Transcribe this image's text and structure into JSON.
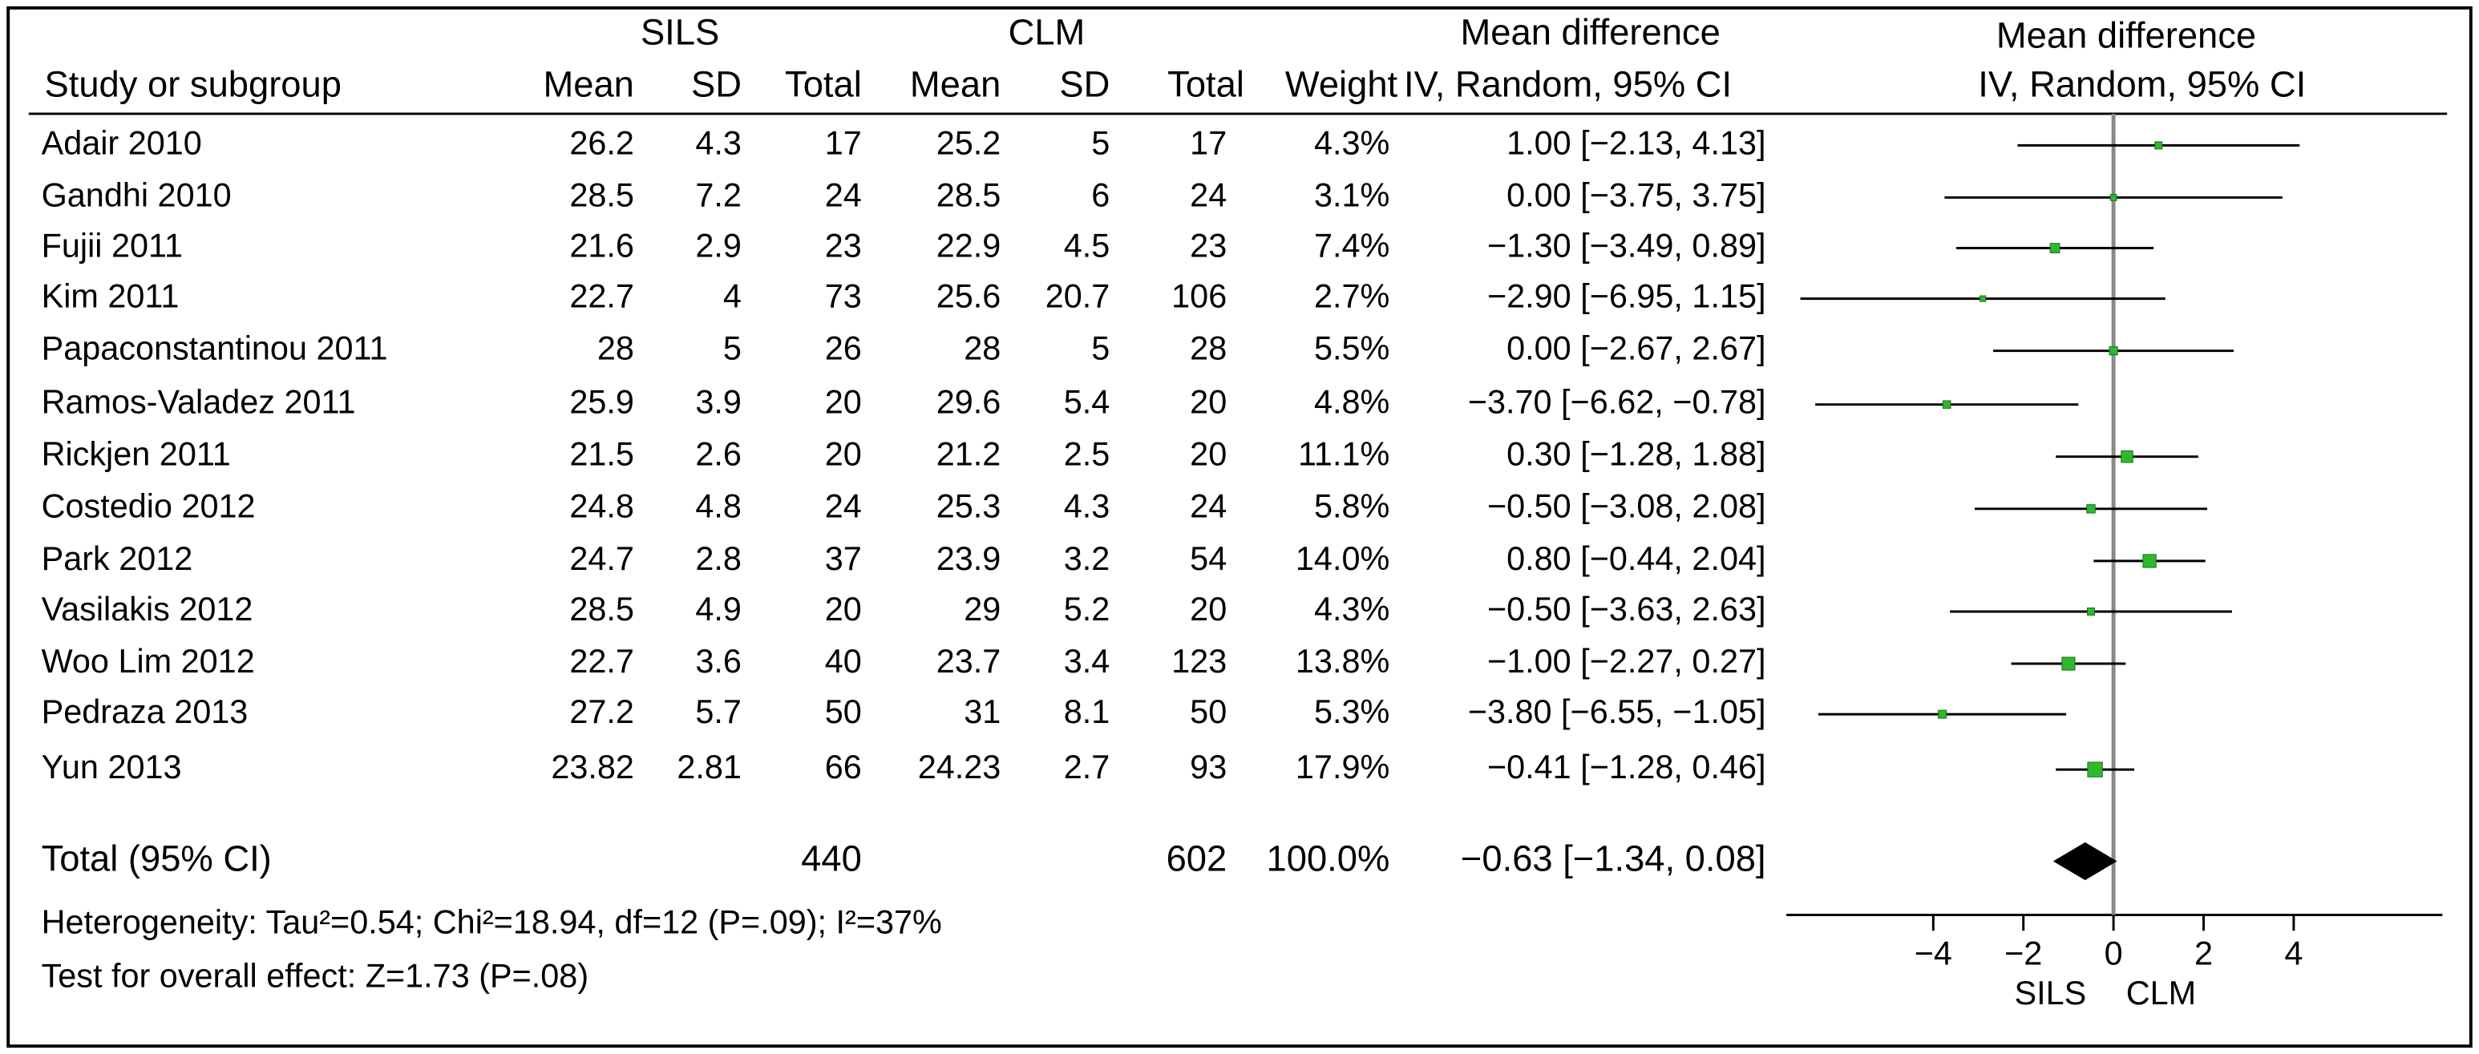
{
  "chart_data": {
    "type": "forest",
    "group_headers": {
      "sils": "SILS",
      "clm": "CLM",
      "md_table": "Mean difference",
      "md_plot": "Mean difference"
    },
    "column_headers": {
      "name": "Study or subgroup",
      "sils_mean": "Mean",
      "sils_sd": "SD",
      "sils_total": "Total",
      "clm_mean": "Mean",
      "clm_sd": "SD",
      "clm_total": "Total",
      "weight": "Weight",
      "ci": "IV, Random, 95% CI",
      "plot": "IV, Random, 95% CI"
    },
    "studies": [
      {
        "name": "Adair 2010",
        "sils_mean": 26.2,
        "sils_sd": 4.3,
        "sils_total": 17,
        "clm_mean": 25.2,
        "clm_sd": 5,
        "clm_total": 17,
        "weight": 4.3,
        "weight_label": "4.3%",
        "md": 1.0,
        "ci_lo": -2.13,
        "ci_hi": 4.13,
        "ci_label": "1.00 [−2.13, 4.13]"
      },
      {
        "name": "Gandhi 2010",
        "sils_mean": 28.5,
        "sils_sd": 7.2,
        "sils_total": 24,
        "clm_mean": 28.5,
        "clm_sd": 6,
        "clm_total": 24,
        "weight": 3.1,
        "weight_label": "3.1%",
        "md": 0.0,
        "ci_lo": -3.75,
        "ci_hi": 3.75,
        "ci_label": "0.00 [−3.75, 3.75]"
      },
      {
        "name": "Fujii 2011",
        "sils_mean": 21.6,
        "sils_sd": 2.9,
        "sils_total": 23,
        "clm_mean": 22.9,
        "clm_sd": 4.5,
        "clm_total": 23,
        "weight": 7.4,
        "weight_label": "7.4%",
        "md": -1.3,
        "ci_lo": -3.49,
        "ci_hi": 0.89,
        "ci_label": "−1.30 [−3.49, 0.89]"
      },
      {
        "name": "Kim 2011",
        "sils_mean": 22.7,
        "sils_sd": 4,
        "sils_total": 73,
        "clm_mean": 25.6,
        "clm_sd": 20.7,
        "clm_total": 106,
        "weight": 2.7,
        "weight_label": "2.7%",
        "md": -2.9,
        "ci_lo": -6.95,
        "ci_hi": 1.15,
        "ci_label": "−2.90 [−6.95, 1.15]"
      },
      {
        "name": "Papaconstantinou 2011",
        "sils_mean": 28,
        "sils_sd": 5,
        "sils_total": 26,
        "clm_mean": 28,
        "clm_sd": 5,
        "clm_total": 28,
        "weight": 5.5,
        "weight_label": "5.5%",
        "md": 0.0,
        "ci_lo": -2.67,
        "ci_hi": 2.67,
        "ci_label": "0.00 [−2.67, 2.67]"
      },
      {
        "name": "Ramos-Valadez 2011",
        "sils_mean": 25.9,
        "sils_sd": 3.9,
        "sils_total": 20,
        "clm_mean": 29.6,
        "clm_sd": 5.4,
        "clm_total": 20,
        "weight": 4.8,
        "weight_label": "4.8%",
        "md": -3.7,
        "ci_lo": -6.62,
        "ci_hi": -0.78,
        "ci_label": "−3.70 [−6.62, −0.78]"
      },
      {
        "name": "Rickjen 2011",
        "sils_mean": 21.5,
        "sils_sd": 2.6,
        "sils_total": 20,
        "clm_mean": 21.2,
        "clm_sd": 2.5,
        "clm_total": 20,
        "weight": 11.1,
        "weight_label": "11.1%",
        "md": 0.3,
        "ci_lo": -1.28,
        "ci_hi": 1.88,
        "ci_label": "0.30 [−1.28, 1.88]"
      },
      {
        "name": "Costedio 2012",
        "sils_mean": 24.8,
        "sils_sd": 4.8,
        "sils_total": 24,
        "clm_mean": 25.3,
        "clm_sd": 4.3,
        "clm_total": 24,
        "weight": 5.8,
        "weight_label": "5.8%",
        "md": -0.5,
        "ci_lo": -3.08,
        "ci_hi": 2.08,
        "ci_label": "−0.50 [−3.08, 2.08]"
      },
      {
        "name": "Park 2012",
        "sils_mean": 24.7,
        "sils_sd": 2.8,
        "sils_total": 37,
        "clm_mean": 23.9,
        "clm_sd": 3.2,
        "clm_total": 54,
        "weight": 14.0,
        "weight_label": "14.0%",
        "md": 0.8,
        "ci_lo": -0.44,
        "ci_hi": 2.04,
        "ci_label": "0.80 [−0.44, 2.04]"
      },
      {
        "name": "Vasilakis 2012",
        "sils_mean": 28.5,
        "sils_sd": 4.9,
        "sils_total": 20,
        "clm_mean": 29,
        "clm_sd": 5.2,
        "clm_total": 20,
        "weight": 4.3,
        "weight_label": "4.3%",
        "md": -0.5,
        "ci_lo": -3.63,
        "ci_hi": 2.63,
        "ci_label": "−0.50 [−3.63, 2.63]"
      },
      {
        "name": "Woo Lim 2012",
        "sils_mean": 22.7,
        "sils_sd": 3.6,
        "sils_total": 40,
        "clm_mean": 23.7,
        "clm_sd": 3.4,
        "clm_total": 123,
        "weight": 13.8,
        "weight_label": "13.8%",
        "md": -1.0,
        "ci_lo": -2.27,
        "ci_hi": 0.27,
        "ci_label": "−1.00 [−2.27, 0.27]"
      },
      {
        "name": "Pedraza 2013",
        "sils_mean": 27.2,
        "sils_sd": 5.7,
        "sils_total": 50,
        "clm_mean": 31,
        "clm_sd": 8.1,
        "clm_total": 50,
        "weight": 5.3,
        "weight_label": "5.3%",
        "md": -3.8,
        "ci_lo": -6.55,
        "ci_hi": -1.05,
        "ci_label": "−3.80 [−6.55, −1.05]"
      },
      {
        "name": "Yun 2013",
        "sils_mean": 23.82,
        "sils_sd": 2.81,
        "sils_total": 66,
        "clm_mean": 24.23,
        "clm_sd": 2.7,
        "clm_total": 93,
        "weight": 17.9,
        "weight_label": "17.9%",
        "md": -0.41,
        "ci_lo": -1.28,
        "ci_hi": 0.46,
        "ci_label": "−0.41 [−1.28, 0.46]"
      }
    ],
    "total": {
      "name": "Total (95% CI)",
      "sils_total": 440,
      "clm_total": 602,
      "weight": 100.0,
      "weight_label": "100.0%",
      "md": -0.63,
      "ci_lo": -1.34,
      "ci_hi": 0.08,
      "ci_label": "−0.63 [−1.34, 0.08]"
    },
    "heterogeneity": "Heterogeneity: Tau²=0.54; Chi²=18.94, df=12 (P=.09); I²=37%",
    "overall_effect": "Test for overall effect: Z=1.73 (P=.08)",
    "xlim": [
      -7.26,
      7.3
    ],
    "xticks": [
      {
        "value": -4,
        "label": "−4"
      },
      {
        "value": -2,
        "label": "−2"
      },
      0,
      2,
      4
    ],
    "favours_left": "SILS",
    "favours_right": "CLM",
    "point_color": "#2eb82e"
  }
}
